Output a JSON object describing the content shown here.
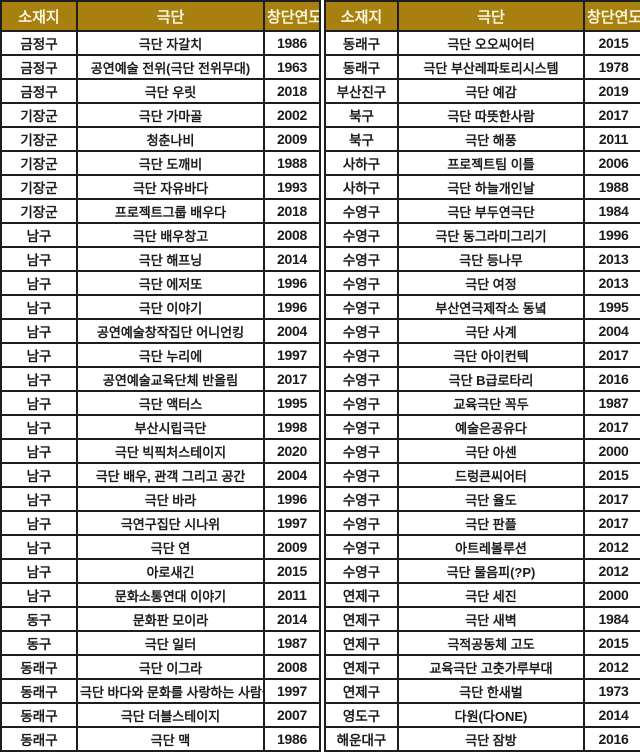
{
  "colors": {
    "header_bg": "#a8800f",
    "header_text": "#f8f3dc",
    "troupe_col_bg": "#fbf8db",
    "border": "#1e1e1e",
    "cell_text": "#1c1c1c"
  },
  "tables": [
    {
      "headers": [
        "소재지",
        "극단",
        "창단연도"
      ],
      "rows": [
        [
          "금정구",
          "극단 자갈치",
          "1986"
        ],
        [
          "금정구",
          "공연예술 전위(극단 전위무대)",
          "1963"
        ],
        [
          "금정구",
          "극단 우릿",
          "2018"
        ],
        [
          "기장군",
          "극단 가마골",
          "2002"
        ],
        [
          "기장군",
          "청춘나비",
          "2009"
        ],
        [
          "기장군",
          "극단 도깨비",
          "1988"
        ],
        [
          "기장군",
          "극단 자유바다",
          "1993"
        ],
        [
          "기장군",
          "프로젝트그룹 배우다",
          "2018"
        ],
        [
          "남구",
          "극단 배우창고",
          "2008"
        ],
        [
          "남구",
          "극단 해프닝",
          "2014"
        ],
        [
          "남구",
          "극단 에저또",
          "1996"
        ],
        [
          "남구",
          "극단 이야기",
          "1996"
        ],
        [
          "남구",
          "공연예술창작집단 어니언킹",
          "2004"
        ],
        [
          "남구",
          "극단 누리에",
          "1997"
        ],
        [
          "남구",
          "공연예술교육단체 반올림",
          "2017"
        ],
        [
          "남구",
          "극단 액터스",
          "1995"
        ],
        [
          "남구",
          "부산시립극단",
          "1998"
        ],
        [
          "남구",
          "극단 빅픽처스테이지",
          "2020"
        ],
        [
          "남구",
          "극단 배우, 관객 그리고 공간",
          "2004"
        ],
        [
          "남구",
          "극단 바라",
          "1996"
        ],
        [
          "남구",
          "극연구집단 시나위",
          "1997"
        ],
        [
          "남구",
          "극단 연",
          "2009"
        ],
        [
          "남구",
          "아로새긴",
          "2015"
        ],
        [
          "남구",
          "문화소통연대 이야기",
          "2011"
        ],
        [
          "동구",
          "문화판 모이라",
          "2014"
        ],
        [
          "동구",
          "극단 일터",
          "1987"
        ],
        [
          "동래구",
          "극단 이그라",
          "2008"
        ],
        [
          "동래구",
          "극단 바다와 문화를 사랑하는 사람들",
          "1997"
        ],
        [
          "동래구",
          "극단 더블스테이지",
          "2007"
        ],
        [
          "동래구",
          "극단 맥",
          "1986"
        ]
      ]
    },
    {
      "headers": [
        "소재지",
        "극단",
        "창단연도"
      ],
      "rows": [
        [
          "동래구",
          "극단 오오씨어터",
          "2015"
        ],
        [
          "동래구",
          "극단 부산레파토리시스템",
          "1978"
        ],
        [
          "부산진구",
          "극단 예감",
          "2019"
        ],
        [
          "북구",
          "극단 따뜻한사람",
          "2017"
        ],
        [
          "북구",
          "극단 해풍",
          "2011"
        ],
        [
          "사하구",
          "프로젝트팀 이틀",
          "2006"
        ],
        [
          "사하구",
          "극단 하늘개인날",
          "1988"
        ],
        [
          "수영구",
          "극단 부두연극단",
          "1984"
        ],
        [
          "수영구",
          "극단 동그라미그리기",
          "1996"
        ],
        [
          "수영구",
          "극단 등나무",
          "2013"
        ],
        [
          "수영구",
          "극단 여정",
          "2013"
        ],
        [
          "수영구",
          "부산연극제작소 동녘",
          "1995"
        ],
        [
          "수영구",
          "극단 사계",
          "2004"
        ],
        [
          "수영구",
          "극단 아이컨텍",
          "2017"
        ],
        [
          "수영구",
          "극단 B급로타리",
          "2016"
        ],
        [
          "수영구",
          "교육극단 꼭두",
          "1987"
        ],
        [
          "수영구",
          "예술은공유다",
          "2017"
        ],
        [
          "수영구",
          "극단 아센",
          "2000"
        ],
        [
          "수영구",
          "드렁큰씨어터",
          "2015"
        ],
        [
          "수영구",
          "극단 율도",
          "2017"
        ],
        [
          "수영구",
          "극단 판플",
          "2017"
        ],
        [
          "수영구",
          "아트레볼루션",
          "2012"
        ],
        [
          "수영구",
          "극단 물음피(?P)",
          "2012"
        ],
        [
          "연제구",
          "극단 세진",
          "2000"
        ],
        [
          "연제구",
          "극단 새벽",
          "1984"
        ],
        [
          "연제구",
          "극적공동체 고도",
          "2015"
        ],
        [
          "연제구",
          "교육극단 고춧가루부대",
          "2012"
        ],
        [
          "연제구",
          "극단 한새벌",
          "1973"
        ],
        [
          "영도구",
          "다원(다ONE)",
          "2014"
        ],
        [
          "해운대구",
          "극단 잠방",
          "2016"
        ]
      ]
    }
  ]
}
